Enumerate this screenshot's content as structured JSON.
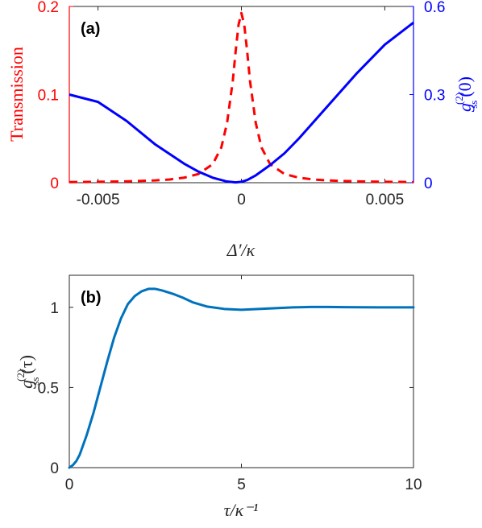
{
  "chart_data": [
    {
      "panel_label": "(a)",
      "type": "line",
      "xlabel": "Δ′/κ",
      "xlim": [
        -0.006,
        0.006
      ],
      "xticks": [
        -0.005,
        0,
        0.005
      ],
      "xtick_labels": [
        "-0.005",
        "0",
        "0.005"
      ],
      "left_axis": {
        "label": "Transmission",
        "color": "#ff0000",
        "ylim": [
          0,
          0.2
        ],
        "ticks": [
          0,
          0.1,
          0.2
        ],
        "tick_labels": [
          "0",
          "0.1",
          "0.2"
        ]
      },
      "right_axis": {
        "label_main": "g",
        "label_sup": "(2)",
        "label_sub": "ss",
        "label_arg": "(0)",
        "color": "#0000ff",
        "ylim": [
          0,
          0.6
        ],
        "ticks": [
          0,
          0.3,
          0.6
        ],
        "tick_labels": [
          "0",
          "0.3",
          "0.6"
        ]
      },
      "series": [
        {
          "axis": "left",
          "style": "dashed",
          "color": "#ff0000",
          "x": [
            -0.006,
            -0.005,
            -0.004,
            -0.003,
            -0.0025,
            -0.002,
            -0.0015,
            -0.001,
            -0.0007,
            -0.0005,
            -0.0003,
            -0.0002,
            -0.0001,
            0,
            0.0001,
            0.0002,
            0.0003,
            0.0005,
            0.0007,
            0.001,
            0.0015,
            0.002,
            0.0025,
            0.003,
            0.004,
            0.005,
            0.006
          ],
          "y": [
            0.0007,
            0.001,
            0.0015,
            0.0026,
            0.0037,
            0.0057,
            0.0099,
            0.021,
            0.04,
            0.0678,
            0.1155,
            0.1493,
            0.1791,
            0.1925,
            0.1791,
            0.1493,
            0.1155,
            0.0678,
            0.04,
            0.021,
            0.0099,
            0.0057,
            0.0037,
            0.0026,
            0.0015,
            0.001,
            0.0007
          ]
        },
        {
          "axis": "right",
          "style": "solid",
          "color": "#0000ff",
          "x": [
            -0.006,
            -0.005,
            -0.004,
            -0.003,
            -0.002,
            -0.0015,
            -0.001,
            -0.0005,
            -0.0002,
            0,
            0.0002,
            0.0005,
            0.001,
            0.0015,
            0.002,
            0.003,
            0.004,
            0.005,
            0.006
          ],
          "y": [
            0.3,
            0.275,
            0.21,
            0.13,
            0.065,
            0.038,
            0.017,
            0.004,
            0.001,
            0.003,
            0.009,
            0.025,
            0.06,
            0.1,
            0.15,
            0.26,
            0.37,
            0.47,
            0.545
          ]
        }
      ]
    },
    {
      "panel_label": "(b)",
      "type": "line",
      "xlabel": "τ/κ⁻¹",
      "xlim": [
        0,
        10
      ],
      "xticks": [
        0,
        5,
        10
      ],
      "xtick_labels": [
        "0",
        "5",
        "10"
      ],
      "ylabel_main": "g",
      "ylabel_sup": "(2)",
      "ylabel_sub": "ss",
      "ylabel_arg": "(τ)",
      "ylim": [
        0,
        1.2
      ],
      "yticks": [
        0,
        0.5,
        1
      ],
      "ytick_labels": [
        "0",
        "0.5",
        "1"
      ],
      "series": [
        {
          "style": "solid",
          "color": "#0072bd",
          "x": [
            0,
            0.1,
            0.2,
            0.3,
            0.4,
            0.5,
            0.7,
            0.9,
            1.1,
            1.3,
            1.5,
            1.7,
            1.9,
            2.1,
            2.3,
            2.5,
            2.7,
            3.0,
            3.3,
            3.6,
            4.0,
            4.5,
            5.0,
            5.5,
            6.0,
            6.5,
            7.0,
            7.5,
            8.0,
            9.0,
            10.0
          ],
          "y": [
            0,
            0.015,
            0.04,
            0.08,
            0.14,
            0.2,
            0.34,
            0.5,
            0.66,
            0.81,
            0.93,
            1.02,
            1.07,
            1.1,
            1.115,
            1.115,
            1.105,
            1.085,
            1.06,
            1.03,
            1.005,
            0.99,
            0.985,
            0.99,
            0.995,
            1.0,
            1.002,
            1.002,
            1.001,
            1.0,
            1.0
          ]
        }
      ]
    }
  ]
}
